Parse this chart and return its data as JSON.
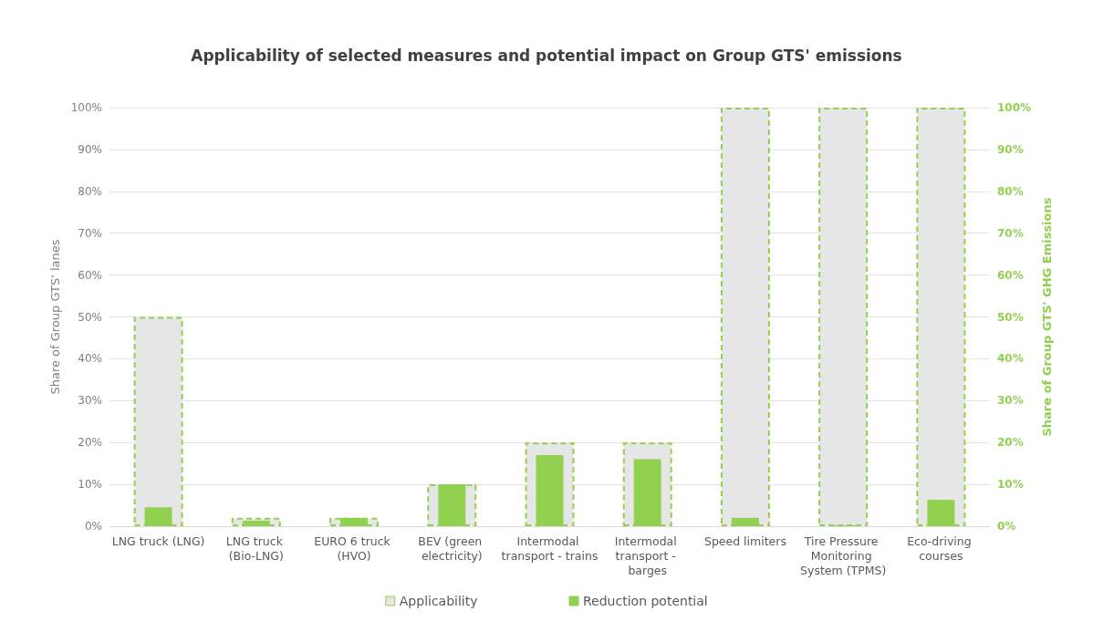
{
  "chart_data": {
    "type": "bar",
    "title": "Applicability of selected measures and potential impact on Group GTS' emissions",
    "categories": [
      "LNG truck (LNG)",
      "LNG truck (Bio-LNG)",
      "EURO 6 truck (HVO)",
      "BEV (green electricity)",
      "Intermodal transport - trains",
      "Intermodal transport - barges",
      "Speed limiters",
      "Tire Pressure Monitoring System (TPMS)",
      "Eco-driving courses"
    ],
    "series": [
      {
        "name": "Applicability",
        "color": "#e6e6e6",
        "values": [
          50,
          2,
          2,
          10,
          20,
          20,
          100,
          100,
          100
        ]
      },
      {
        "name": "Reduction potential",
        "color": "#92d050",
        "axis": "y2",
        "values": [
          4.5,
          1.3,
          2,
          10,
          17,
          16,
          2,
          0.2,
          6.3
        ]
      }
    ],
    "ylabel": "Share of Group GTS' lanes",
    "y2label": "Share of Group GTS' GHG Emissions",
    "ylim": [
      0,
      100
    ],
    "yticks": [
      {
        "value": 0,
        "label": "0%"
      },
      {
        "value": 10,
        "label": "10%"
      },
      {
        "value": 20,
        "label": "20%"
      },
      {
        "value": 30,
        "label": "30%"
      },
      {
        "value": 40,
        "label": "40%"
      },
      {
        "value": 50,
        "label": "50%"
      },
      {
        "value": 60,
        "label": "60%"
      },
      {
        "value": 70,
        "label": "70%"
      },
      {
        "value": 80,
        "label": "80%"
      },
      {
        "value": 90,
        "label": "90%"
      },
      {
        "value": 100,
        "label": "100%"
      }
    ],
    "y2lim": [
      0,
      100
    ],
    "y2ticks": [
      {
        "value": 0,
        "label": "0%"
      },
      {
        "value": 10,
        "label": "10%"
      },
      {
        "value": 20,
        "label": "20%"
      },
      {
        "value": 30,
        "label": "30%"
      },
      {
        "value": 40,
        "label": "40%"
      },
      {
        "value": 50,
        "label": "50%"
      },
      {
        "value": 60,
        "label": "60%"
      },
      {
        "value": 70,
        "label": "70%"
      },
      {
        "value": 80,
        "label": "80%"
      },
      {
        "value": 90,
        "label": "90%"
      },
      {
        "value": 100,
        "label": "100%"
      }
    ],
    "grid": "y",
    "legend": "bottom"
  }
}
